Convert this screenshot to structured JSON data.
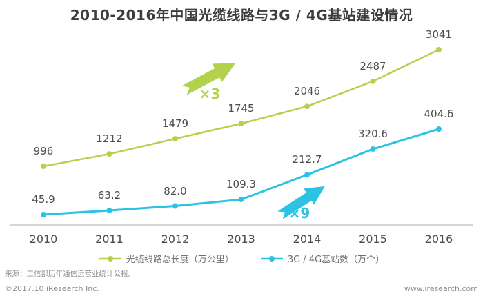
{
  "title": "2010-2016年中国光缆线路与3G / 4G基站建设情况",
  "chart_data": {
    "type": "line",
    "categories": [
      "2010",
      "2011",
      "2012",
      "2013",
      "2014",
      "2015",
      "2016"
    ],
    "series": [
      {
        "name": "光缆线路总长度（万公里）",
        "color": "#b3d24b",
        "values": [
          996,
          1212,
          1479,
          1745,
          2046,
          2487,
          3041
        ],
        "labels": [
          "996",
          "1212",
          "1479",
          "1745",
          "2046",
          "2487",
          "3041"
        ],
        "annotation": "×3"
      },
      {
        "name": "3G / 4G基站数（万个）",
        "color": "#2cc2e4",
        "values": [
          45.9,
          63.2,
          82,
          109.3,
          212.7,
          320.6,
          404.6
        ],
        "labels": [
          "45.9",
          "63.2",
          "82.0",
          "109.3",
          "212.7",
          "320.6",
          "404.6"
        ],
        "annotation": "×9"
      }
    ],
    "title": "2010-2016年中国光缆线路与3G / 4G基站建设情况",
    "xlabel": "",
    "ylabel": "",
    "grid": false,
    "y_axis_shown": false,
    "legend_position": "bottom"
  },
  "colors": {
    "green": "#b3d24b",
    "cyan": "#2cc2e4",
    "axis": "#c9c9c9",
    "title_text": "#3d3d3d",
    "label_text": "#4d4d4d",
    "legend_text": "#6f6f6f",
    "footer_text": "#8f8f8f"
  },
  "footer": {
    "source": "来源：工信部历年通信运营业统计公报。",
    "copyright": "©2017.10 iResearch Inc.",
    "website": "www.iresearch.com"
  }
}
